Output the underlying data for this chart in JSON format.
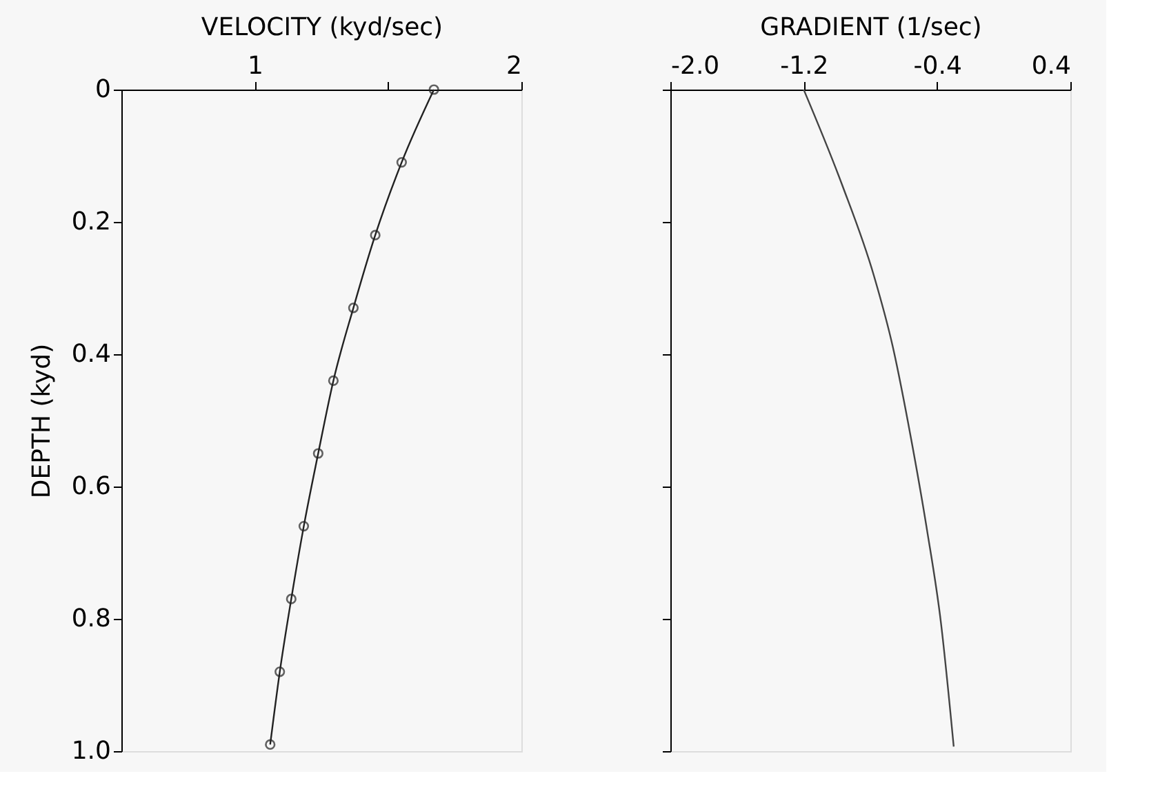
{
  "chart_data": [
    {
      "type": "line",
      "xlabel": "VELOCITY (kyd/sec)",
      "ylabel": "DEPTH (kyd)",
      "marker": "circle",
      "line_style": "solid",
      "grid": false,
      "series": [
        {
          "color": "#222222",
          "x": [
            1.672,
            1.551,
            1.452,
            1.37,
            1.295,
            1.238,
            1.184,
            1.137,
            1.094,
            1.058
          ],
          "values": [
            0,
            0.11,
            0.22,
            0.33,
            0.44,
            0.55,
            0.66,
            0.77,
            0.88,
            0.99
          ]
        }
      ],
      "xlim": [
        0.5,
        2
      ],
      "xticks": [
        1,
        {
          "value": 1.5,
          "label": null
        },
        2
      ],
      "ylim": [
        1,
        0
      ],
      "yticks": [
        0,
        0.2,
        0.4,
        0.6,
        0.8,
        {
          "value": 1,
          "label": "1.0"
        }
      ]
    },
    {
      "type": "line",
      "xlabel": "GRADIENT (1/sec)",
      "marker": "none",
      "line_style": "solid",
      "grid": false,
      "tick_labels": "x",
      "series": [
        {
          "color": "#444444",
          "x": [
            -1.2,
            -0.971,
            -0.778,
            -0.667,
            -0.557,
            -0.46,
            -0.377,
            -0.3
          ],
          "values": [
            0,
            0.143,
            0.282,
            0.387,
            0.526,
            0.666,
            0.805,
            0.993
          ]
        }
      ],
      "xlim": [
        -2,
        0.4
      ],
      "xticks": [
        {
          "value": -2,
          "label": "-2.0"
        },
        -1.2,
        -0.4,
        0.4
      ],
      "ylim": [
        1,
        0
      ],
      "yticks": [
        {
          "value": 0,
          "label": null
        },
        {
          "value": 0.2,
          "label": null
        },
        {
          "value": 0.4,
          "label": null
        },
        {
          "value": 0.6,
          "label": null
        },
        {
          "value": 0.8,
          "label": null
        },
        {
          "value": 1,
          "label": null
        }
      ]
    }
  ]
}
